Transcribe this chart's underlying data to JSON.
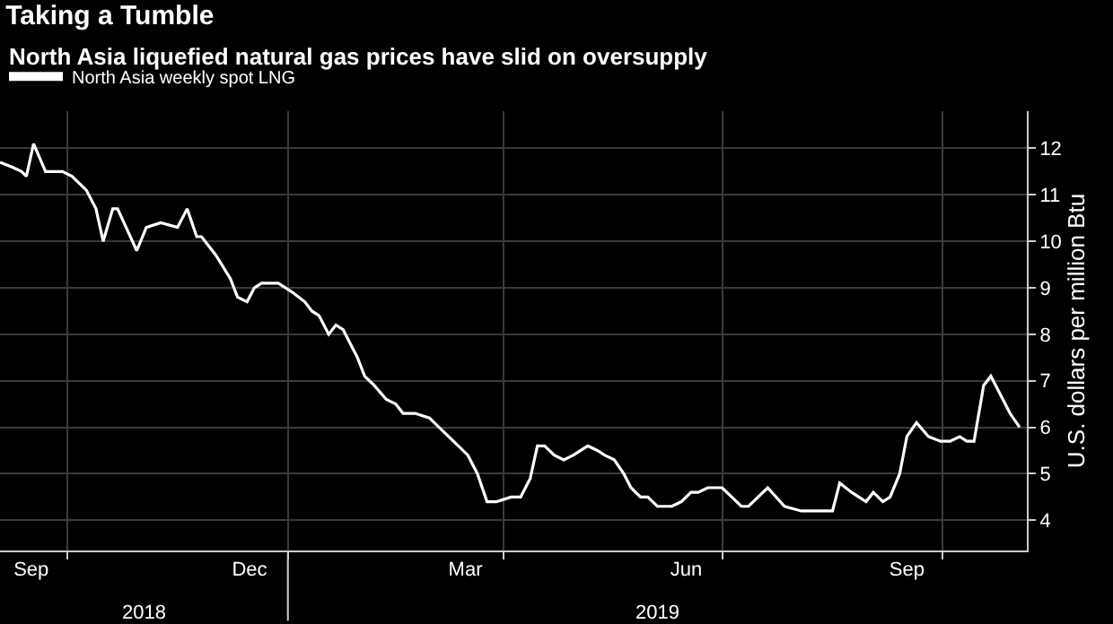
{
  "chart_data": {
    "type": "line",
    "title": "Taking a Tumble",
    "subtitle": "North Asia liquefied natural gas prices have slid on oversupply",
    "ylabel": "U.S. dollars per million Btu",
    "x": [
      "2018-09-03",
      "2018-09-08",
      "2018-09-12",
      "2018-09-14",
      "2018-09-17",
      "2018-09-22",
      "2018-09-25",
      "2018-09-29",
      "2018-10-03",
      "2018-10-09",
      "2018-10-13",
      "2018-10-16",
      "2018-10-20",
      "2018-10-22",
      "2018-10-30",
      "2018-11-03",
      "2018-11-09",
      "2018-11-16",
      "2018-11-20",
      "2018-11-24",
      "2018-11-26",
      "2018-12-02",
      "2018-12-08",
      "2018-12-11",
      "2018-12-15",
      "2018-12-18",
      "2018-12-21",
      "2018-12-28",
      "2019-01-03",
      "2019-01-08",
      "2019-01-11",
      "2019-01-14",
      "2019-01-18",
      "2019-01-21",
      "2019-01-24",
      "2019-01-30",
      "2019-02-02",
      "2019-02-06",
      "2019-02-11",
      "2019-02-15",
      "2019-02-18",
      "2019-02-23",
      "2019-03-01",
      "2019-03-05",
      "2019-03-11",
      "2019-03-17",
      "2019-03-21",
      "2019-03-25",
      "2019-03-29",
      "2019-04-04",
      "2019-04-08",
      "2019-04-12",
      "2019-04-15",
      "2019-04-18",
      "2019-04-22",
      "2019-04-26",
      "2019-04-30",
      "2019-05-06",
      "2019-05-10",
      "2019-05-13",
      "2019-05-17",
      "2019-05-21",
      "2019-05-24",
      "2019-05-28",
      "2019-05-31",
      "2019-06-04",
      "2019-06-10",
      "2019-06-14",
      "2019-06-18",
      "2019-06-21",
      "2019-06-25",
      "2019-07-01",
      "2019-07-05",
      "2019-07-09",
      "2019-07-12",
      "2019-07-20",
      "2019-07-27",
      "2019-08-03",
      "2019-08-16",
      "2019-08-19",
      "2019-08-24",
      "2019-08-30",
      "2019-09-02",
      "2019-09-06",
      "2019-09-09",
      "2019-09-13",
      "2019-09-16",
      "2019-09-20",
      "2019-09-25",
      "2019-09-30",
      "2019-10-04",
      "2019-10-08",
      "2019-10-11",
      "2019-10-14",
      "2019-10-18",
      "2019-10-21",
      "2019-10-29",
      "2019-11-02"
    ],
    "series": [
      {
        "name": "North Asia weekly spot LNG",
        "color": "#ffffff",
        "values": [
          11.7,
          11.6,
          11.5,
          11.4,
          12.1,
          11.5,
          11.5,
          11.5,
          11.4,
          11.1,
          10.7,
          10.0,
          10.7,
          10.7,
          9.8,
          10.3,
          10.4,
          10.3,
          10.7,
          10.1,
          10.1,
          9.7,
          9.2,
          8.8,
          8.7,
          9.0,
          9.1,
          9.1,
          8.9,
          8.7,
          8.5,
          8.4,
          8.0,
          8.2,
          8.1,
          7.5,
          7.1,
          6.9,
          6.6,
          6.5,
          6.3,
          6.3,
          6.2,
          6.0,
          5.7,
          5.4,
          5.0,
          4.4,
          4.4,
          4.5,
          4.5,
          4.9,
          5.6,
          5.6,
          5.4,
          5.3,
          5.4,
          5.6,
          5.5,
          5.4,
          5.3,
          5.0,
          4.7,
          4.5,
          4.5,
          4.3,
          4.3,
          4.4,
          4.6,
          4.6,
          4.7,
          4.7,
          4.5,
          4.3,
          4.3,
          4.7,
          4.3,
          4.2,
          4.2,
          4.8,
          4.6,
          4.4,
          4.6,
          4.4,
          4.5,
          5.0,
          5.8,
          6.1,
          5.8,
          5.7,
          5.7,
          5.8,
          5.7,
          5.7,
          6.9,
          7.1,
          6.3,
          6.0
        ]
      }
    ],
    "xlim": [
      "2018-09-03",
      "2019-11-05"
    ],
    "xticks": [
      {
        "value": "2018-09-16",
        "label": "Sep"
      },
      {
        "value": "2018-12-16",
        "label": "Dec"
      },
      {
        "value": "2019-03-16",
        "label": "Mar"
      },
      {
        "value": "2019-06-16",
        "label": "Jun"
      },
      {
        "value": "2019-09-16",
        "label": "Sep"
      },
      {
        "value": "2018-10-01",
        "label": null
      },
      {
        "value": "2019-01-01",
        "label": null
      },
      {
        "value": "2019-04-01",
        "label": null
      },
      {
        "value": "2019-07-01",
        "label": null
      },
      {
        "value": "2019-10-01",
        "label": null
      }
    ],
    "ylim": [
      3.35,
      12.8
    ],
    "yticks": [
      4,
      5,
      6,
      7,
      8,
      9,
      10,
      11,
      12
    ],
    "annotations": [
      "2018",
      "2019"
    ],
    "grid": true,
    "legend": "top left",
    "marker": "none",
    "line_style": "solid"
  }
}
